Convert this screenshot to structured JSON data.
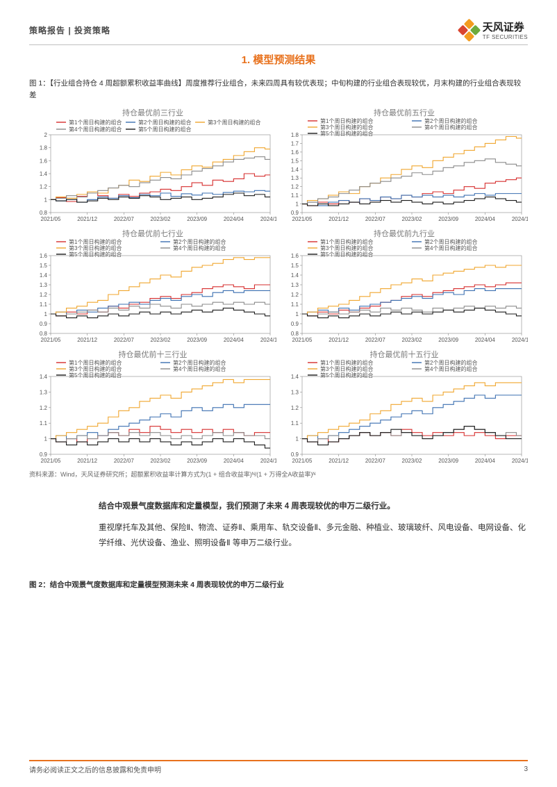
{
  "header": {
    "left": "策略报告 | 投资策略",
    "logo_cn": "天风证券",
    "logo_en": "TF SECURITIES"
  },
  "logo_colors": {
    "orange": "#f39c1f",
    "red": "#d94530",
    "green": "#6eab3d"
  },
  "section_title": "1. 模型预测结果",
  "section_title_color": "#e8711c",
  "fig1_caption": "图 1：【行业组合持仓 4 周超额累积收益率曲线】周度推荐行业组合，未来四周具有较优表现；中旬构建的行业组合表现较优，月末构建的行业组合表现较差",
  "footnote": "资料来源：Wind，天风证券研究所；超额累积收益率计算方式为(1 + 组合收益率)ᴺ/(1 + 万得全A收益率)ᴺ",
  "body": {
    "lead": "结合中观景气度数据库和定量模型，我们预测了未来 4 周表现较优的申万二级行业。",
    "para": "重视摩托车及其他、保险Ⅱ、物流、证券Ⅱ、乘用车、轨交设备Ⅱ、多元金融、种植业、玻璃玻纤、风电设备、电网设备、化学纤维、光伏设备、渔业、照明设备Ⅱ 等申万二级行业。"
  },
  "fig2_caption": "图 2：结合中观景气度数据库和定量模型预测未来 4 周表现较优的申万二级行业",
  "footer": {
    "left": "请务必阅读正文之后的信息披露和免责申明",
    "page": "3"
  },
  "legend_labels": [
    "第1个周日构建的组合",
    "第2个周日构建的组合",
    "第3个周日构建的组合",
    "第4个周日构建的组合",
    "第5个周日构建的组合"
  ],
  "series_colors": {
    "s1": "#d62c2c",
    "s2": "#3a6fb0",
    "s3": "#f0a62e",
    "s4": "#8a8a8a",
    "s5": "#1a1a1a"
  },
  "x_ticks": [
    "2021/05",
    "2021/12",
    "2022/07",
    "2023/02",
    "2023/09",
    "2024/04",
    "2024/11"
  ],
  "axis_color": "#888888",
  "grid_color": "#d8d8d8",
  "tick_fontsize": 8,
  "legend_fontsize": 8,
  "title_fontsize": 11,
  "line_width": 1.1,
  "charts": [
    {
      "title": "持仓最优前三行业",
      "ylim": [
        0.8,
        2.0
      ],
      "ytick_step": 0.2,
      "legend_layout": "3col",
      "series": {
        "s1": [
          1.0,
          1.03,
          0.97,
          1.05,
          1.1,
          1.06,
          1.02,
          1.08,
          1.05,
          1.1,
          1.12,
          1.16,
          1.14,
          1.2,
          1.26,
          1.22,
          1.3,
          1.28,
          1.32,
          1.4,
          1.36,
          1.38
        ],
        "s2": [
          1.0,
          0.98,
          1.02,
          0.96,
          1.0,
          1.04,
          1.02,
          1.06,
          1.03,
          1.08,
          1.06,
          1.1,
          1.05,
          1.09,
          1.07,
          1.1,
          1.08,
          1.11,
          1.13,
          1.12,
          1.14,
          1.13
        ],
        "s3": [
          1.0,
          1.04,
          1.02,
          1.08,
          1.12,
          1.1,
          1.18,
          1.22,
          1.3,
          1.28,
          1.36,
          1.42,
          1.38,
          1.46,
          1.52,
          1.5,
          1.58,
          1.62,
          1.68,
          1.74,
          1.8,
          1.78
        ],
        "s4": [
          1.0,
          1.02,
          1.06,
          1.04,
          1.1,
          1.14,
          1.18,
          1.22,
          1.2,
          1.26,
          1.3,
          1.34,
          1.32,
          1.38,
          1.44,
          1.48,
          1.52,
          1.58,
          1.62,
          1.64,
          1.66,
          1.62
        ],
        "s5": [
          1.0,
          0.98,
          1.0,
          0.96,
          0.98,
          1.02,
          1.0,
          1.04,
          1.02,
          1.06,
          1.04,
          1.0,
          1.02,
          1.04,
          1.0,
          1.02,
          1.04,
          1.08,
          1.1,
          1.06,
          1.08,
          1.04
        ]
      }
    },
    {
      "title": "持仓最优前五行业",
      "ylim": [
        0.9,
        1.8
      ],
      "ytick_step": 0.1,
      "legend_layout": "2col",
      "series": {
        "s1": [
          1.0,
          0.98,
          1.02,
          1.0,
          1.04,
          1.02,
          1.06,
          1.04,
          1.08,
          1.06,
          1.1,
          1.08,
          1.12,
          1.14,
          1.12,
          1.16,
          1.2,
          1.18,
          1.24,
          1.26,
          1.28,
          1.3
        ],
        "s2": [
          1.0,
          1.02,
          0.98,
          1.02,
          1.04,
          1.02,
          1.06,
          1.04,
          1.08,
          1.06,
          1.1,
          1.08,
          1.1,
          1.08,
          1.1,
          1.08,
          1.1,
          1.12,
          1.1,
          1.12,
          1.12,
          1.12
        ],
        "s3": [
          1.0,
          1.04,
          1.06,
          1.1,
          1.14,
          1.12,
          1.2,
          1.24,
          1.3,
          1.34,
          1.4,
          1.44,
          1.42,
          1.5,
          1.54,
          1.58,
          1.62,
          1.66,
          1.7,
          1.74,
          1.78,
          1.76
        ],
        "s4": [
          1.0,
          1.02,
          1.06,
          1.08,
          1.12,
          1.16,
          1.2,
          1.24,
          1.26,
          1.3,
          1.32,
          1.36,
          1.34,
          1.38,
          1.42,
          1.44,
          1.48,
          1.5,
          1.52,
          1.48,
          1.46,
          1.44
        ],
        "s5": [
          1.0,
          0.98,
          1.0,
          0.98,
          1.0,
          1.02,
          1.0,
          1.02,
          1.04,
          1.02,
          1.04,
          1.02,
          1.0,
          1.02,
          1.0,
          1.02,
          1.04,
          1.06,
          1.08,
          1.06,
          1.04,
          1.02
        ]
      }
    },
    {
      "title": "持仓最优前七行业",
      "ylim": [
        0.8,
        1.6
      ],
      "ytick_step": 0.1,
      "legend_layout": "2col",
      "series": {
        "s1": [
          1.0,
          0.98,
          1.02,
          1.0,
          1.04,
          1.02,
          1.08,
          1.06,
          1.1,
          1.12,
          1.16,
          1.18,
          1.16,
          1.2,
          1.22,
          1.26,
          1.28,
          1.3,
          1.28,
          1.26,
          1.3,
          1.3
        ],
        "s2": [
          1.0,
          1.02,
          1.0,
          1.04,
          1.02,
          1.06,
          1.08,
          1.1,
          1.12,
          1.1,
          1.14,
          1.16,
          1.14,
          1.18,
          1.2,
          1.18,
          1.22,
          1.24,
          1.22,
          1.24,
          1.24,
          1.24
        ],
        "s3": [
          1.0,
          1.02,
          1.06,
          1.08,
          1.12,
          1.14,
          1.2,
          1.24,
          1.28,
          1.32,
          1.36,
          1.4,
          1.38,
          1.44,
          1.48,
          1.5,
          1.52,
          1.56,
          1.58,
          1.56,
          1.58,
          1.58
        ],
        "s4": [
          1.0,
          0.98,
          1.0,
          1.02,
          1.04,
          1.02,
          1.06,
          1.04,
          1.08,
          1.06,
          1.1,
          1.08,
          1.06,
          1.1,
          1.08,
          1.1,
          1.12,
          1.1,
          1.12,
          1.1,
          1.12,
          1.1
        ],
        "s5": [
          1.0,
          0.98,
          0.96,
          0.98,
          0.96,
          0.98,
          1.0,
          0.98,
          1.0,
          1.02,
          1.0,
          1.02,
          1.0,
          1.02,
          1.04,
          1.02,
          1.04,
          1.06,
          1.04,
          1.02,
          1.0,
          0.98
        ]
      }
    },
    {
      "title": "持仓最优前九行业",
      "ylim": [
        0.8,
        1.6
      ],
      "ytick_step": 0.1,
      "legend_layout": "2col",
      "series": {
        "s1": [
          1.0,
          0.98,
          1.02,
          1.0,
          1.04,
          1.02,
          1.06,
          1.08,
          1.12,
          1.14,
          1.18,
          1.2,
          1.18,
          1.22,
          1.24,
          1.26,
          1.28,
          1.3,
          1.28,
          1.3,
          1.32,
          1.32
        ],
        "s2": [
          1.0,
          1.02,
          1.04,
          1.02,
          1.06,
          1.04,
          1.08,
          1.1,
          1.12,
          1.14,
          1.16,
          1.18,
          1.16,
          1.2,
          1.22,
          1.2,
          1.24,
          1.26,
          1.24,
          1.26,
          1.26,
          1.26
        ],
        "s3": [
          1.0,
          1.02,
          1.06,
          1.08,
          1.1,
          1.14,
          1.18,
          1.22,
          1.26,
          1.3,
          1.32,
          1.36,
          1.34,
          1.4,
          1.42,
          1.44,
          1.46,
          1.48,
          1.5,
          1.48,
          1.5,
          1.5
        ],
        "s4": [
          1.0,
          0.98,
          1.0,
          1.02,
          1.0,
          1.02,
          1.04,
          1.02,
          1.06,
          1.04,
          1.06,
          1.04,
          1.02,
          1.06,
          1.04,
          1.06,
          1.08,
          1.06,
          1.08,
          1.06,
          1.08,
          1.06
        ],
        "s5": [
          1.0,
          0.98,
          0.96,
          0.98,
          0.96,
          0.98,
          1.0,
          0.98,
          1.0,
          1.02,
          1.0,
          1.02,
          1.0,
          1.02,
          1.04,
          1.02,
          1.04,
          1.06,
          1.04,
          1.02,
          1.0,
          0.98
        ]
      }
    },
    {
      "title": "持仓最优前十三行业",
      "ylim": [
        0.9,
        1.4
      ],
      "ytick_step": 0.1,
      "legend_layout": "2col",
      "series": {
        "s1": [
          1.0,
          0.98,
          1.0,
          0.98,
          1.0,
          1.02,
          1.04,
          1.02,
          1.06,
          1.04,
          1.08,
          1.06,
          1.04,
          1.06,
          1.04,
          1.06,
          1.04,
          1.06,
          1.04,
          1.02,
          1.04,
          1.04
        ],
        "s2": [
          1.0,
          1.02,
          1.0,
          1.02,
          1.04,
          1.02,
          1.06,
          1.08,
          1.1,
          1.12,
          1.14,
          1.16,
          1.14,
          1.18,
          1.2,
          1.18,
          1.2,
          1.22,
          1.2,
          1.22,
          1.22,
          1.22
        ],
        "s3": [
          1.0,
          1.02,
          1.04,
          1.06,
          1.08,
          1.1,
          1.14,
          1.18,
          1.2,
          1.24,
          1.26,
          1.28,
          1.26,
          1.3,
          1.32,
          1.34,
          1.36,
          1.38,
          1.36,
          1.38,
          1.38,
          1.38
        ],
        "s4": [
          1.0,
          0.98,
          1.0,
          1.02,
          1.0,
          1.02,
          1.04,
          1.02,
          1.04,
          1.02,
          1.04,
          1.02,
          1.0,
          1.02,
          1.0,
          1.02,
          1.04,
          1.02,
          1.04,
          1.02,
          1.02,
          1.0
        ],
        "s5": [
          1.0,
          0.98,
          0.96,
          0.98,
          0.96,
          0.98,
          1.0,
          0.98,
          1.0,
          0.98,
          1.0,
          0.98,
          0.96,
          0.98,
          0.96,
          0.98,
          1.0,
          0.98,
          1.0,
          0.98,
          0.96,
          0.94
        ]
      }
    },
    {
      "title": "持仓最优前十五行业",
      "ylim": [
        0.9,
        1.4
      ],
      "ytick_step": 0.1,
      "legend_layout": "2col",
      "series": {
        "s1": [
          1.0,
          0.98,
          1.0,
          0.98,
          1.0,
          1.02,
          1.04,
          1.02,
          1.04,
          1.02,
          1.06,
          1.04,
          1.02,
          1.04,
          1.02,
          1.04,
          1.02,
          1.04,
          1.02,
          1.0,
          1.02,
          1.02
        ],
        "s2": [
          1.0,
          1.02,
          1.0,
          1.02,
          1.04,
          1.06,
          1.08,
          1.1,
          1.12,
          1.14,
          1.16,
          1.18,
          1.16,
          1.2,
          1.22,
          1.24,
          1.26,
          1.28,
          1.26,
          1.28,
          1.28,
          1.28
        ],
        "s3": [
          1.0,
          1.02,
          1.04,
          1.06,
          1.08,
          1.1,
          1.12,
          1.16,
          1.18,
          1.22,
          1.24,
          1.26,
          1.24,
          1.28,
          1.3,
          1.32,
          1.34,
          1.36,
          1.34,
          1.36,
          1.36,
          1.36
        ],
        "s4": [
          1.0,
          0.98,
          1.0,
          1.02,
          1.0,
          1.02,
          1.04,
          1.02,
          1.04,
          1.02,
          1.04,
          1.02,
          1.0,
          1.02,
          1.04,
          1.06,
          1.08,
          1.06,
          1.04,
          1.02,
          1.04,
          1.02
        ],
        "s5": [
          1.0,
          0.98,
          0.96,
          0.98,
          1.0,
          1.02,
          1.04,
          1.02,
          1.04,
          1.06,
          1.04,
          1.02,
          1.0,
          1.02,
          1.04,
          1.06,
          1.08,
          1.06,
          1.04,
          1.02,
          1.0,
          1.0
        ]
      }
    }
  ]
}
